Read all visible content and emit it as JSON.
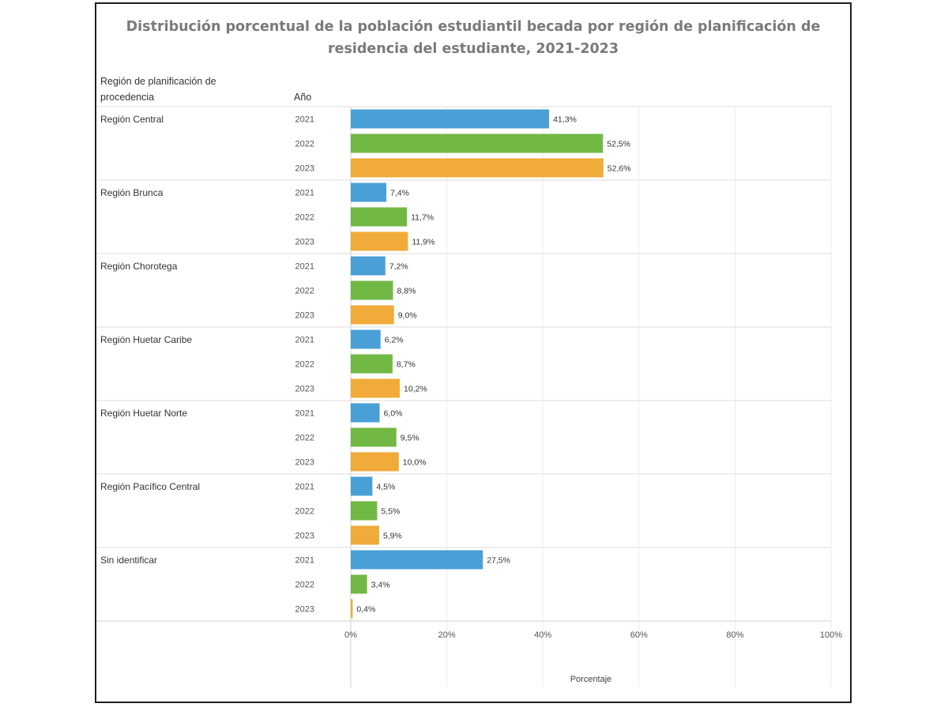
{
  "chart_data": {
    "type": "bar",
    "orientation": "horizontal",
    "title_line1": "Distribución porcentual de la población estudiantil becada por región de planificación de",
    "title_line2": "residencia del estudiante, 2021-2023",
    "header_region_line1": "Región de planificación de",
    "header_region_line2": "procedencia",
    "header_year": "Año",
    "xlabel": "Porcentaje",
    "xlim": [
      0,
      100
    ],
    "x_ticks": [
      0,
      20,
      40,
      60,
      80,
      100
    ],
    "x_tick_labels": [
      "0%",
      "20%",
      "40%",
      "60%",
      "80%",
      "100%"
    ],
    "years": [
      "2021",
      "2022",
      "2023"
    ],
    "year_colors": {
      "2021": "#4a9fd6",
      "2022": "#72b844",
      "2023": "#f0ab3a"
    },
    "grid": "vertical",
    "categories": [
      {
        "name": "Región Central",
        "values": [
          41.3,
          52.5,
          52.6
        ],
        "labels": [
          "41,3%",
          "52,5%",
          "52,6%"
        ]
      },
      {
        "name": "Región Brunca",
        "values": [
          7.4,
          11.7,
          11.9
        ],
        "labels": [
          "7,4%",
          "11,7%",
          "11,9%"
        ]
      },
      {
        "name": "Región Chorotega",
        "values": [
          7.2,
          8.8,
          9.0
        ],
        "labels": [
          "7,2%",
          "8,8%",
          "9,0%"
        ]
      },
      {
        "name": "Región Huetar Caribe",
        "values": [
          6.2,
          8.7,
          10.2
        ],
        "labels": [
          "6,2%",
          "8,7%",
          "10,2%"
        ]
      },
      {
        "name": "Región Huetar Norte",
        "values": [
          6.0,
          9.5,
          10.0
        ],
        "labels": [
          "6,0%",
          "9,5%",
          "10,0%"
        ]
      },
      {
        "name": "Región Pacífico Central",
        "values": [
          4.5,
          5.5,
          5.9
        ],
        "labels": [
          "4,5%",
          "5,5%",
          "5,9%"
        ]
      },
      {
        "name": "Sin identificar",
        "values": [
          27.5,
          3.4,
          0.4
        ],
        "labels": [
          "27,5%",
          "3,4%",
          "0,4%"
        ]
      }
    ]
  }
}
